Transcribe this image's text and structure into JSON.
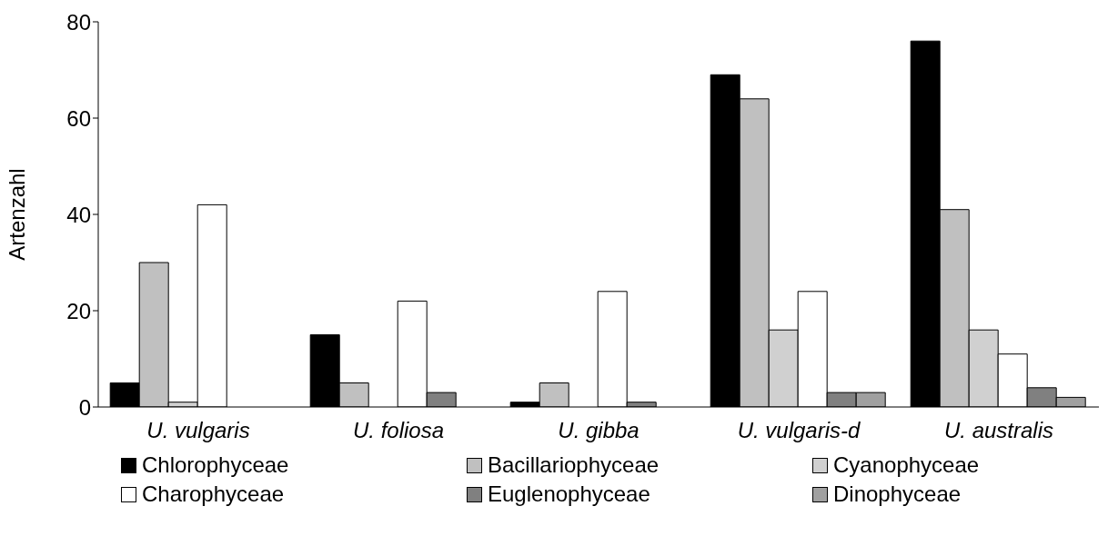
{
  "chart_data": {
    "type": "bar",
    "ylabel": "Artenzahl",
    "categories": [
      "U. vulgaris",
      "U. foliosa",
      "U. gibba",
      "U. vulgaris-d",
      "U. australis"
    ],
    "series": [
      {
        "name": "Chlorophyceae",
        "color": "#000000",
        "values": [
          5,
          15,
          1,
          69,
          76
        ]
      },
      {
        "name": "Bacillariophyceae",
        "color": "#c0c0c0",
        "values": [
          30,
          5,
          5,
          64,
          41
        ]
      },
      {
        "name": "Cyanophyceae",
        "color": "#d0d0d0",
        "values": [
          1,
          0,
          0,
          16,
          16
        ]
      },
      {
        "name": "Charophyceae",
        "color": "#ffffff",
        "values": [
          42,
          22,
          24,
          24,
          11
        ]
      },
      {
        "name": "Euglenophyceae",
        "color": "#808080",
        "values": [
          0,
          3,
          1,
          3,
          4
        ]
      },
      {
        "name": "Dinophyceae",
        "color": "#a0a0a0",
        "values": [
          0,
          0,
          0,
          3,
          2
        ]
      }
    ],
    "ylim": [
      0,
      80
    ],
    "yticks": [
      0,
      20,
      40,
      60,
      80
    ],
    "grid": false,
    "legend": "bottom"
  }
}
